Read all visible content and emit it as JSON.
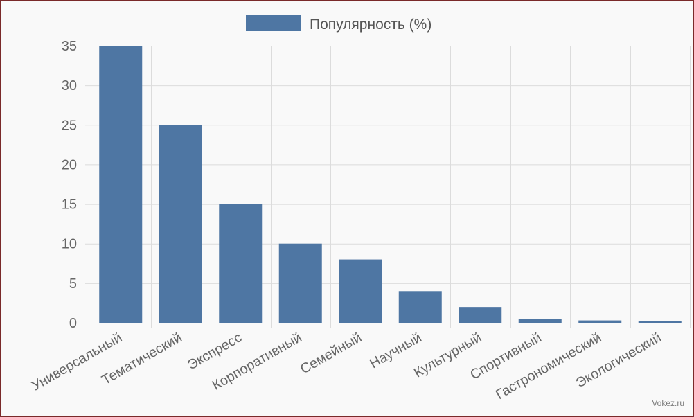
{
  "watermark": "Vokez.ru",
  "chart_data": {
    "type": "bar",
    "categories": [
      "Универсальный",
      "Тематический",
      "Экспресс",
      "Корпоративный",
      "Семейный",
      "Научный",
      "Культурный",
      "Спортивный",
      "Гастрономический",
      "Экологический"
    ],
    "series": [
      {
        "name": "Популярность (%)",
        "values": [
          35,
          25,
          15,
          10,
          8,
          4,
          2,
          0.5,
          0.3,
          0.2
        ],
        "color": "#4e76a3"
      }
    ],
    "ylim": [
      0,
      35
    ],
    "yticks": [
      0,
      5,
      10,
      15,
      20,
      25,
      30,
      35
    ],
    "grid": true,
    "legend": "top-center",
    "colors": {
      "grid": "#dcdcdc",
      "axis": "#999999",
      "text": "#666666",
      "frame": "#7a2a2a"
    }
  }
}
